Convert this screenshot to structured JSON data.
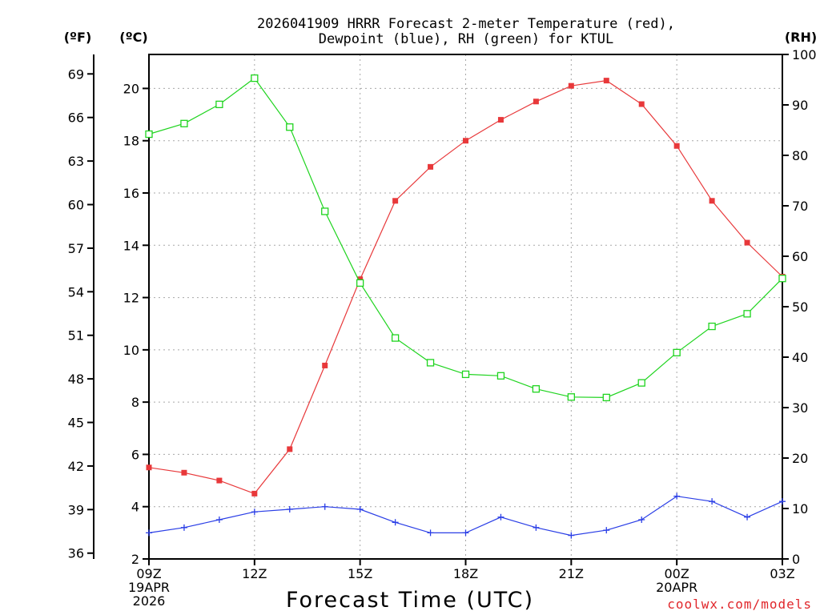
{
  "chart_data": {
    "type": "line",
    "title_line1": "2026041909 HRRR Forecast 2-meter Temperature (red),",
    "title_line2": "Dewpoint (blue), RH (green) for KTUL",
    "xlabel": "Forecast Time (UTC)",
    "credit": "coolwx.com/models",
    "unit_f": "(ºF)",
    "unit_c": "(ºC)",
    "unit_rh": "(RH)",
    "x_hours": [
      9,
      10,
      11,
      12,
      13,
      14,
      15,
      16,
      17,
      18,
      19,
      20,
      21,
      22,
      23,
      24,
      25,
      26,
      27
    ],
    "x_ticks": [
      {
        "hour": 9,
        "lines": [
          "09Z",
          "19APR",
          "2026"
        ]
      },
      {
        "hour": 12,
        "lines": [
          "12Z"
        ]
      },
      {
        "hour": 15,
        "lines": [
          "15Z"
        ]
      },
      {
        "hour": 18,
        "lines": [
          "18Z"
        ]
      },
      {
        "hour": 21,
        "lines": [
          "21Z"
        ]
      },
      {
        "hour": 24,
        "lines": [
          "00Z",
          "20APR"
        ]
      },
      {
        "hour": 27,
        "lines": [
          "03Z"
        ]
      }
    ],
    "celsius_axis": {
      "min": 2,
      "max": 21.3,
      "ticks": [
        2,
        4,
        6,
        8,
        10,
        12,
        14,
        16,
        18,
        20
      ]
    },
    "fahrenheit_ticks": [
      36,
      39,
      42,
      45,
      48,
      51,
      54,
      57,
      60,
      63,
      66,
      69
    ],
    "rh_axis": {
      "min": 0,
      "max": 100,
      "ticks": [
        0,
        10,
        20,
        30,
        40,
        50,
        60,
        70,
        80,
        90,
        100
      ]
    },
    "series": [
      {
        "name": "Temperature",
        "axis": "C",
        "color": "#e8383a",
        "marker": "filled-square",
        "values": [
          5.5,
          5.3,
          5.0,
          4.5,
          6.2,
          9.4,
          12.7,
          15.7,
          17.0,
          18.0,
          18.8,
          19.5,
          20.1,
          20.3,
          19.4,
          17.8,
          15.7,
          14.1,
          12.8
        ]
      },
      {
        "name": "Dewpoint",
        "axis": "C",
        "color": "#2a3ee6",
        "marker": "plus",
        "values": [
          3.0,
          3.2,
          3.5,
          3.8,
          3.9,
          4.0,
          3.9,
          3.4,
          3.0,
          3.0,
          3.6,
          3.2,
          2.9,
          3.1,
          3.5,
          4.4,
          4.2,
          3.6,
          4.2
        ]
      },
      {
        "name": "RH",
        "axis": "RH",
        "color": "#1fd41f",
        "marker": "open-square",
        "values": [
          84.2,
          86.3,
          90.1,
          95.3,
          85.6,
          68.9,
          54.7,
          43.8,
          38.9,
          36.6,
          36.3,
          33.7,
          32.1,
          32.0,
          34.9,
          40.9,
          46.1,
          48.6,
          55.6
        ]
      }
    ]
  }
}
